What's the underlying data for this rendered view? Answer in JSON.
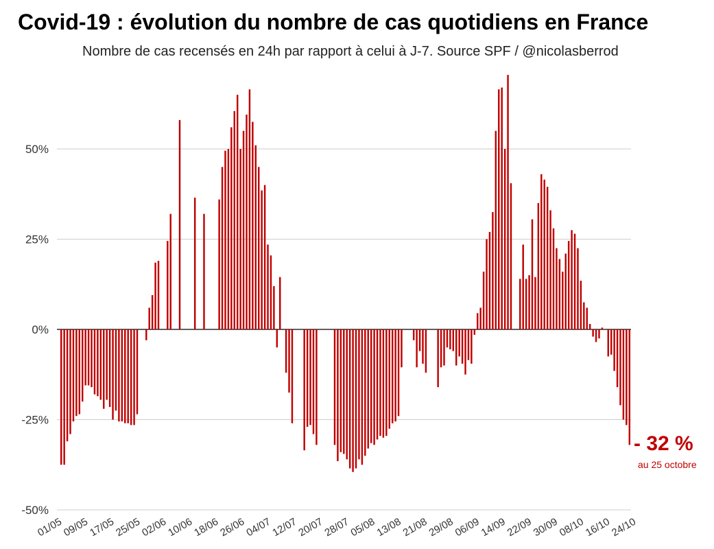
{
  "title": "Covid-19 : évolution du nombre de cas quotidiens en France",
  "subtitle": "Nombre de cas recensés en 24h par rapport à celui à J-7. Source SPF / @nicolasberrod",
  "annotation": {
    "value": "- 32 %",
    "sub": "au 25 octobre"
  },
  "colors": {
    "bar": "#c00000",
    "grid": "#cccccc",
    "zero_line": "#000000"
  },
  "chart_data": {
    "type": "bar",
    "title": "Covid-19 : évolution du nombre de cas quotidiens en France",
    "subtitle": "Nombre de cas recensés en 24h par rapport à celui à J-7. Source SPF / @nicolasberrod",
    "xlabel": "",
    "ylabel": "",
    "unit": "%",
    "ylim": [
      -50,
      75
    ],
    "yticks": [
      50,
      25,
      0,
      -25,
      -50
    ],
    "ytick_labels": [
      "50%",
      "25%",
      "0%",
      "-25%",
      "-50%"
    ],
    "grid": true,
    "legend": "none",
    "x_start": "01/05",
    "x_end": "25/10",
    "xtick_labels": [
      "01/05",
      "09/05",
      "17/05",
      "25/05",
      "02/06",
      "10/06",
      "18/06",
      "26/06",
      "04/07",
      "12/07",
      "20/07",
      "28/07",
      "05/08",
      "13/08",
      "21/08",
      "29/08",
      "06/09",
      "14/09",
      "22/09",
      "30/09",
      "08/10",
      "16/10",
      "24/10"
    ],
    "values": [
      -37.5,
      -37.5,
      -31,
      -29,
      -25.5,
      -24,
      -23.5,
      -20,
      -15.5,
      -15.5,
      -16,
      -18,
      -18.5,
      -19.5,
      -22,
      -19.5,
      -21.5,
      -25,
      -22.5,
      -25.5,
      -25.5,
      -26,
      -26,
      -26.5,
      -26.5,
      -23.5,
      0,
      0,
      -3,
      6,
      9.5,
      18.5,
      19,
      0,
      0,
      24.5,
      32,
      0,
      0,
      58,
      0,
      0,
      0,
      0,
      36.5,
      0,
      0,
      32,
      0,
      0,
      0,
      0,
      36,
      45,
      49.5,
      50,
      56,
      60.5,
      65,
      50,
      55,
      59.5,
      66.5,
      57.5,
      51,
      45,
      38.5,
      40,
      23.5,
      20.5,
      12,
      -5,
      14.5,
      0,
      -12,
      -17.5,
      -26,
      0,
      0,
      0,
      -33.5,
      -27,
      -26.5,
      -29,
      -32,
      0,
      0,
      0,
      0,
      0,
      -32,
      -36.5,
      -34,
      -34.5,
      -36,
      -38.5,
      -39.5,
      -38.5,
      -36,
      -37.5,
      -35,
      -33,
      -31.5,
      -32,
      -30.5,
      -29.5,
      -30,
      -29.5,
      -27.5,
      -26,
      -25.5,
      -24,
      -10.5,
      0,
      0,
      0,
      -3,
      -10.5,
      -6,
      -9.5,
      -12,
      0,
      0,
      0,
      -16,
      -10.5,
      -10,
      -5,
      -5.5,
      -6,
      -10,
      -7.5,
      -9.5,
      -12.5,
      -8.5,
      -9.5,
      -1.5,
      4.5,
      6,
      16,
      25,
      27,
      32.5,
      55,
      66.5,
      67,
      50,
      70.5,
      40.5,
      0,
      0,
      14,
      23.5,
      14,
      15,
      30.5,
      14.5,
      35,
      43,
      41.5,
      39.5,
      33,
      28,
      22.5,
      19.5,
      16,
      21,
      24.5,
      27.5,
      26.5,
      22.5,
      13.5,
      7.5,
      6,
      1.5,
      -2,
      -3.5,
      -2.5,
      0.5,
      0,
      -7.5,
      -7,
      -11.5,
      -16,
      -21,
      -25,
      -26.5,
      -32
    ]
  }
}
